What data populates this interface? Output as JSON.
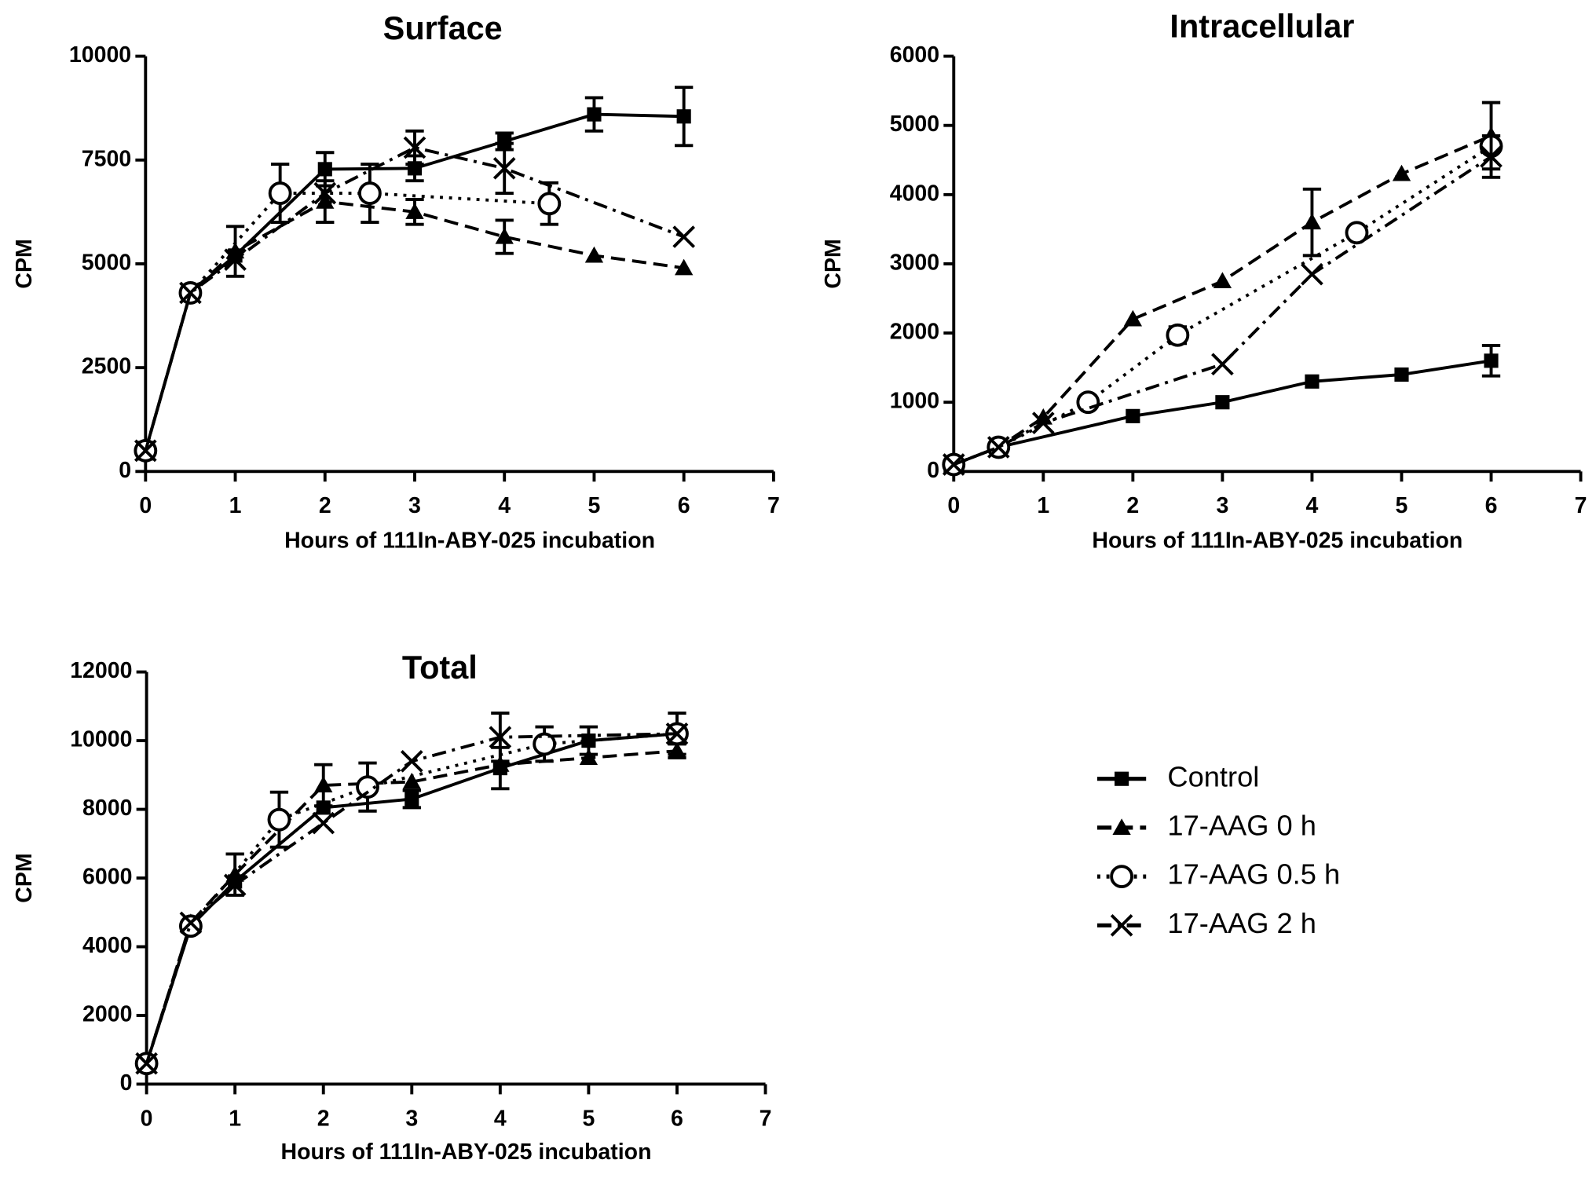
{
  "chart_data": [
    {
      "type": "line",
      "title": "Surface",
      "xlabel": "Hours of 111In-ABY-025 incubation",
      "ylabel": "CPM",
      "xlim": [
        0,
        7
      ],
      "xticks": [
        0,
        1,
        2,
        3,
        4,
        5,
        6,
        7
      ],
      "ylim": [
        0,
        10000
      ],
      "yticks": [
        0,
        2500,
        5000,
        7500,
        10000
      ],
      "series": [
        {
          "name": "Control",
          "color": "#000000",
          "marker": "square",
          "dash": "solid",
          "x": [
            0,
            0.5,
            1,
            2,
            3,
            4,
            5,
            6
          ],
          "values": [
            500,
            4300,
            5200,
            7280,
            7300,
            7950,
            8600,
            8550
          ],
          "errors": [
            200,
            150,
            null,
            400,
            300,
            200,
            400,
            700
          ]
        },
        {
          "name": "17-AAG 0 h",
          "color": "#000000",
          "marker": "triangle",
          "dash": "dashed",
          "x": [
            0,
            0.5,
            1,
            2,
            3,
            4,
            5,
            6
          ],
          "values": [
            500,
            4300,
            5300,
            6500,
            6250,
            5650,
            5200,
            4900
          ],
          "errors": [
            null,
            null,
            600,
            500,
            300,
            400,
            null,
            null
          ]
        },
        {
          "name": "17-AAG 0.5 h",
          "color": "#000000",
          "marker": "circle",
          "dash": "dotted",
          "x": [
            0,
            0.5,
            1.5,
            2.5,
            4.5
          ],
          "values": [
            500,
            4300,
            6700,
            6700,
            6450
          ],
          "errors": [
            null,
            null,
            700,
            700,
            500
          ]
        },
        {
          "name": "17-AAG 2 h",
          "color": "#000000",
          "marker": "x",
          "dash": "dashdot",
          "x": [
            0,
            0.5,
            1,
            2,
            3,
            4,
            6
          ],
          "values": [
            500,
            4300,
            5100,
            6700,
            7800,
            7300,
            5650
          ],
          "errors": [
            null,
            null,
            null,
            null,
            400,
            600,
            null
          ]
        }
      ]
    },
    {
      "type": "line",
      "title": "Intracellular",
      "xlabel": "Hours of 111In-ABY-025 incubation",
      "ylabel": "CPM",
      "xlim": [
        0,
        7
      ],
      "xticks": [
        0,
        1,
        2,
        3,
        4,
        5,
        6,
        7
      ],
      "ylim": [
        0,
        6000
      ],
      "yticks": [
        0,
        1000,
        2000,
        3000,
        4000,
        5000,
        6000
      ],
      "series": [
        {
          "color": "#000000",
          "marker": "square",
          "dash": "solid",
          "x": [
            0,
            0.5,
            2,
            3,
            4,
            5,
            6
          ],
          "values": [
            100,
            350,
            800,
            1000,
            1300,
            1400,
            1600
          ],
          "errors": [
            null,
            null,
            null,
            null,
            null,
            null,
            220
          ]
        },
        {
          "color": "#000000",
          "marker": "triangle",
          "dash": "dashed",
          "x": [
            0,
            0.5,
            1,
            2,
            3,
            4,
            5,
            6
          ],
          "values": [
            100,
            350,
            780,
            2200,
            2750,
            3600,
            4300,
            4850
          ],
          "errors": [
            null,
            null,
            null,
            null,
            null,
            480,
            null,
            480
          ]
        },
        {
          "color": "#000000",
          "marker": "circle",
          "dash": "dotted",
          "x": [
            0,
            0.5,
            1.5,
            2.5,
            4.5,
            6
          ],
          "values": [
            100,
            350,
            1000,
            1970,
            3450,
            4700
          ],
          "errors": [
            null,
            null,
            null,
            120,
            null,
            null
          ]
        },
        {
          "color": "#000000",
          "marker": "x",
          "dash": "dashdot",
          "x": [
            0,
            0.5,
            1,
            3,
            4,
            6
          ],
          "values": [
            100,
            350,
            700,
            1550,
            2850,
            4550
          ],
          "errors": [
            null,
            null,
            null,
            null,
            null,
            300
          ]
        }
      ]
    },
    {
      "type": "line",
      "title": "Total",
      "xlabel": "Hours of 111In-ABY-025 incubation",
      "ylabel": "CPM",
      "xlim": [
        0,
        7
      ],
      "xticks": [
        0,
        1,
        2,
        3,
        4,
        5,
        6,
        7
      ],
      "ylim": [
        0,
        12000
      ],
      "yticks": [
        0,
        2000,
        4000,
        6000,
        8000,
        10000,
        12000
      ],
      "series": [
        {
          "color": "#000000",
          "marker": "square",
          "dash": "solid",
          "x": [
            0,
            0.5,
            1,
            2,
            3,
            4,
            5,
            6
          ],
          "values": [
            600,
            4600,
            5900,
            8050,
            8300,
            9200,
            10000,
            10200
          ],
          "errors": [
            null,
            null,
            null,
            null,
            250,
            600,
            400,
            600
          ]
        },
        {
          "color": "#000000",
          "marker": "triangle",
          "dash": "dashed",
          "x": [
            0,
            0.5,
            1,
            2,
            3,
            4,
            5,
            6
          ],
          "values": [
            600,
            4700,
            6100,
            8700,
            8800,
            9300,
            9500,
            9700
          ],
          "errors": [
            null,
            null,
            600,
            600,
            null,
            null,
            null,
            200
          ]
        },
        {
          "color": "#000000",
          "marker": "circle",
          "dash": "dotted",
          "x": [
            0,
            0.5,
            1.5,
            2.5,
            4.5,
            6
          ],
          "values": [
            600,
            4600,
            7700,
            8650,
            9900,
            10200
          ],
          "errors": [
            null,
            null,
            800,
            700,
            500,
            null
          ]
        },
        {
          "color": "#000000",
          "marker": "x",
          "dash": "dashdot",
          "x": [
            0,
            0.5,
            1,
            2,
            3,
            4,
            6
          ],
          "values": [
            600,
            4700,
            5800,
            7600,
            9400,
            10100,
            10200
          ],
          "errors": [
            null,
            null,
            null,
            null,
            null,
            700,
            null
          ]
        }
      ]
    }
  ]
}
